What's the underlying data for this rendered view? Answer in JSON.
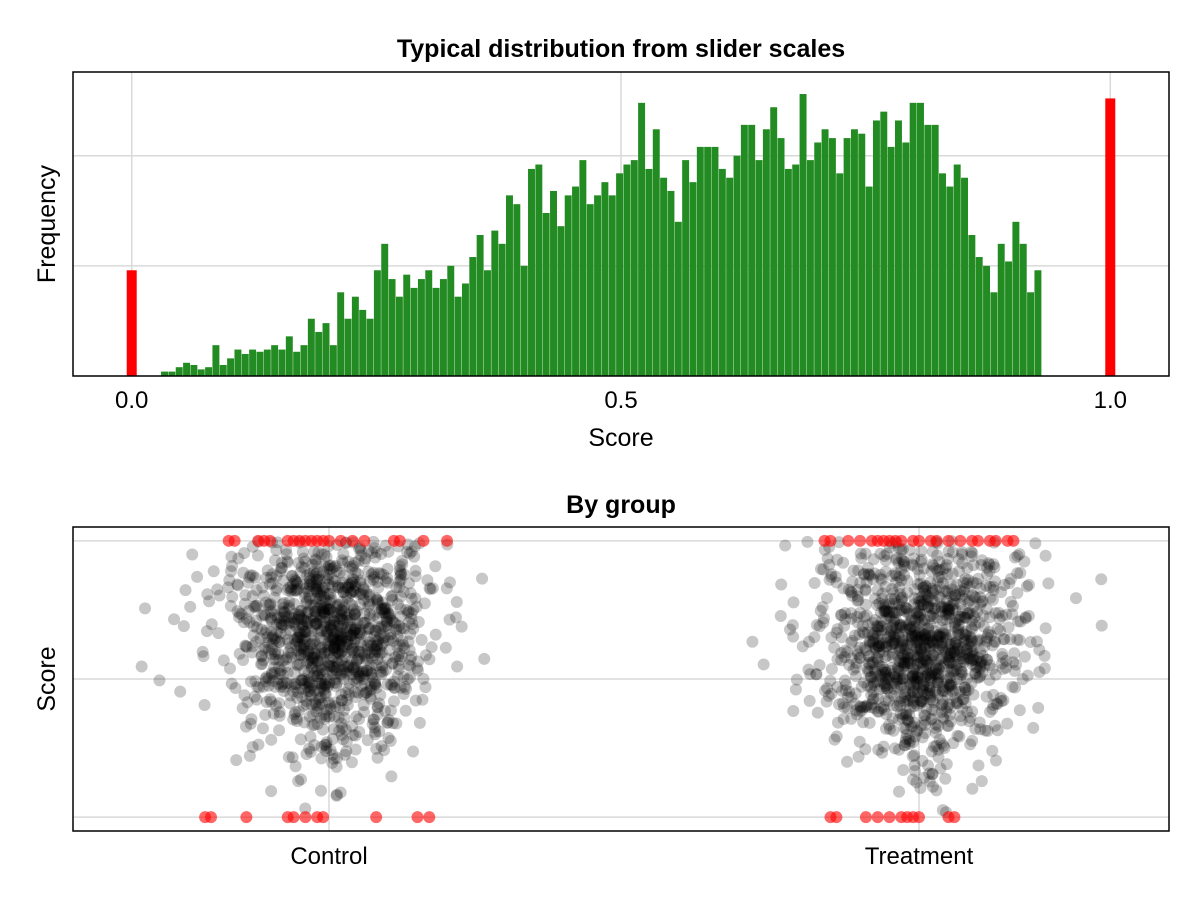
{
  "colors": {
    "bar_normal": "#228b22",
    "bar_extreme": "#ff0000",
    "point_normal": "#000000",
    "point_extreme": "#ff0000",
    "grid": "#d9d9d9"
  },
  "chart_data": [
    {
      "type": "bar",
      "title": "Typical distribution from slider scales",
      "xlabel": "Score",
      "ylabel": "Frequency",
      "xlim": [
        -0.06,
        1.06
      ],
      "ylim": [
        0,
        138
      ],
      "xticks": [
        0.0,
        0.5,
        1.0
      ],
      "xtick_labels": [
        "0.0",
        "0.5",
        "1.0"
      ],
      "y_gridlines": [
        50,
        100
      ],
      "bin_width": 0.01,
      "grid": true,
      "series": [
        {
          "kind": "floor",
          "x": [
            0.0
          ],
          "values": [
            48
          ]
        },
        {
          "kind": "interior",
          "x_start": 0.03,
          "values": [
            2,
            2,
            4,
            6,
            5,
            3,
            4,
            14,
            5,
            8,
            12,
            10,
            12,
            11,
            12,
            14,
            12,
            18,
            11,
            14,
            26,
            20,
            24,
            14,
            38,
            26,
            36,
            30,
            26,
            48,
            60,
            44,
            36,
            46,
            40,
            44,
            48,
            40,
            44,
            50,
            36,
            42,
            54,
            64,
            48,
            66,
            60,
            82,
            78,
            50,
            94,
            96,
            74,
            84,
            68,
            82,
            86,
            98,
            78,
            82,
            88,
            82,
            92,
            96,
            98,
            124,
            94,
            112,
            90,
            84,
            70,
            98,
            88,
            104,
            104,
            104,
            94,
            90,
            100,
            114,
            114,
            98,
            112,
            122,
            108,
            94,
            96,
            128,
            98,
            106,
            112,
            108,
            92,
            108,
            112,
            110,
            86,
            116,
            120,
            104,
            116,
            106,
            124,
            124,
            114,
            114,
            92,
            86,
            96,
            90,
            64,
            54,
            50,
            38,
            60,
            52,
            70,
            60,
            38,
            48
          ],
          "values_per_bin_note": null
        },
        {
          "kind": "ceiling",
          "x": [
            1.0
          ],
          "values": [
            126
          ]
        }
      ]
    },
    {
      "type": "scatter",
      "title": "By group",
      "xlabel": "",
      "ylabel": "Score",
      "categories": [
        "Control",
        "Treatment"
      ],
      "ylim": [
        -0.05,
        1.05
      ],
      "y_gridlines": [
        0,
        0.5,
        1
      ],
      "grid": true,
      "series": [
        {
          "name": "Control",
          "n_points": 1200,
          "y_center": 0.66,
          "y_spread": 0.2,
          "jitter": 0.17,
          "floor_x": [
            -0.21,
            -0.2,
            -0.14,
            -0.07,
            -0.06,
            -0.04,
            -0.02,
            -0.01,
            0.08,
            0.15,
            0.17
          ],
          "ceiling_x": [
            -0.17,
            -0.16,
            -0.12,
            -0.11,
            -0.1,
            -0.07,
            -0.06,
            -0.05,
            -0.04,
            -0.03,
            -0.02,
            -0.01,
            0.0,
            0.02,
            0.04,
            0.06,
            0.11,
            0.12,
            0.16,
            0.2
          ]
        },
        {
          "name": "Treatment",
          "n_points": 1200,
          "y_center": 0.62,
          "y_spread": 0.2,
          "jitter": 0.17,
          "floor_x": [
            -0.15,
            -0.14,
            -0.09,
            -0.07,
            -0.05,
            -0.03,
            -0.02,
            -0.01,
            0.0,
            0.05,
            0.06
          ],
          "ceiling_x": [
            -0.16,
            -0.15,
            -0.12,
            -0.1,
            -0.08,
            -0.07,
            -0.06,
            -0.05,
            -0.04,
            -0.03,
            -0.01,
            0.0,
            0.02,
            0.03,
            0.05,
            0.07,
            0.09,
            0.1,
            0.12,
            0.13,
            0.15,
            0.16
          ]
        }
      ]
    }
  ]
}
